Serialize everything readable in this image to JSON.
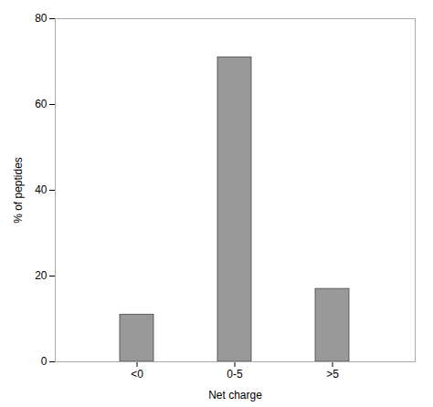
{
  "chart_data": {
    "type": "bar",
    "categories": [
      "<0",
      "0-5",
      ">5"
    ],
    "values": [
      11,
      71,
      17
    ],
    "color": "#999999",
    "xlabel": "Net charge",
    "ylabel": "% of peptides",
    "ylim": [
      0,
      80
    ],
    "yticks": [
      0,
      20,
      40,
      60,
      80
    ]
  }
}
